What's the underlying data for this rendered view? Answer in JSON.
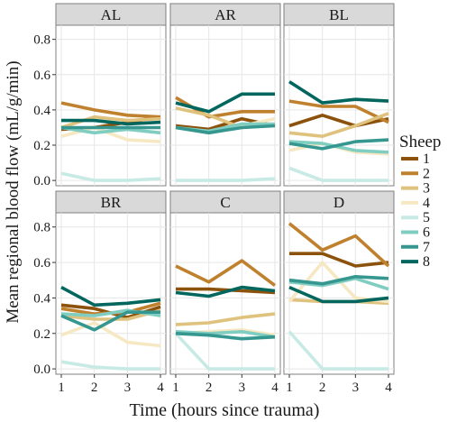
{
  "chart_data": {
    "type": "line",
    "facet_layout": "2 rows x 3 columns",
    "xlabel": "Time (hours since trauma)",
    "ylabel": "Mean regional blood flow (mL/g/min)",
    "x": [
      1,
      2,
      3,
      4
    ],
    "x_ticks": [
      "1",
      "2",
      "3",
      "4"
    ],
    "xlim": [
      1,
      4
    ],
    "ylim": [
      -0.03,
      0.88
    ],
    "y_ticks": [
      "0.0",
      "0.2",
      "0.4",
      "0.6",
      "0.8"
    ],
    "y_tick_values": [
      0,
      0.2,
      0.4,
      0.6,
      0.8
    ],
    "grid": true,
    "legend": {
      "title": "Sheep",
      "placement": "right",
      "entries": [
        {
          "label": "1",
          "color": "#8c510a"
        },
        {
          "label": "2",
          "color": "#bf812d"
        },
        {
          "label": "3",
          "color": "#dfc27d"
        },
        {
          "label": "4",
          "color": "#f6e8c3"
        },
        {
          "label": "5",
          "color": "#c7eae5"
        },
        {
          "label": "6",
          "color": "#80cdc1"
        },
        {
          "label": "7",
          "color": "#35978f"
        },
        {
          "label": "8",
          "color": "#01665e"
        }
      ]
    },
    "panels": [
      {
        "label": "AL",
        "series": [
          {
            "name": "1",
            "values": [
              0.29,
              0.3,
              0.33,
              0.36
            ]
          },
          {
            "name": "2",
            "values": [
              0.44,
              0.4,
              0.37,
              0.36
            ]
          },
          {
            "name": "3",
            "values": [
              0.3,
              0.36,
              0.34,
              0.35
            ]
          },
          {
            "name": "4",
            "values": [
              0.25,
              0.3,
              0.23,
              0.22
            ]
          },
          {
            "name": "5",
            "values": [
              0.04,
              0.0,
              0.0,
              0.01
            ]
          },
          {
            "name": "6",
            "values": [
              0.3,
              0.27,
              0.29,
              0.27
            ]
          },
          {
            "name": "7",
            "values": [
              0.3,
              0.3,
              0.3,
              0.3
            ]
          },
          {
            "name": "8",
            "values": [
              0.34,
              0.34,
              0.32,
              0.33
            ]
          }
        ]
      },
      {
        "label": "AR",
        "series": [
          {
            "name": "1",
            "values": [
              0.31,
              0.29,
              0.35,
              0.31
            ]
          },
          {
            "name": "2",
            "values": [
              0.47,
              0.36,
              0.39,
              0.39
            ]
          },
          {
            "name": "3",
            "values": [
              0.41,
              0.37,
              0.3,
              0.32
            ]
          },
          {
            "name": "4",
            "values": [
              0.3,
              0.27,
              0.31,
              0.35
            ]
          },
          {
            "name": "5",
            "values": [
              0.0,
              0.0,
              0.0,
              0.01
            ]
          },
          {
            "name": "6",
            "values": [
              0.3,
              0.28,
              0.32,
              0.32
            ]
          },
          {
            "name": "7",
            "values": [
              0.3,
              0.27,
              0.3,
              0.31
            ]
          },
          {
            "name": "8",
            "values": [
              0.44,
              0.39,
              0.49,
              0.49
            ]
          }
        ]
      },
      {
        "label": "BL",
        "series": [
          {
            "name": "1",
            "values": [
              0.31,
              0.37,
              0.31,
              0.35
            ]
          },
          {
            "name": "2",
            "values": [
              0.45,
              0.42,
              0.42,
              0.33
            ]
          },
          {
            "name": "3",
            "values": [
              0.27,
              0.25,
              0.31,
              0.38
            ]
          },
          {
            "name": "4",
            "values": [
              0.17,
              0.21,
              0.16,
              0.15
            ]
          },
          {
            "name": "5",
            "values": [
              0.07,
              0.0,
              0.0,
              0.0
            ]
          },
          {
            "name": "6",
            "values": [
              0.22,
              0.21,
              0.17,
              0.16
            ]
          },
          {
            "name": "7",
            "values": [
              0.21,
              0.18,
              0.22,
              0.23
            ]
          },
          {
            "name": "8",
            "values": [
              0.56,
              0.44,
              0.46,
              0.45
            ]
          }
        ]
      },
      {
        "label": "BR",
        "series": [
          {
            "name": "1",
            "values": [
              0.36,
              0.34,
              0.29,
              0.35
            ]
          },
          {
            "name": "2",
            "values": [
              0.34,
              0.31,
              0.32,
              0.37
            ]
          },
          {
            "name": "3",
            "values": [
              0.3,
              0.28,
              0.28,
              0.33
            ]
          },
          {
            "name": "4",
            "values": [
              0.19,
              0.26,
              0.15,
              0.13
            ]
          },
          {
            "name": "5",
            "values": [
              0.04,
              0.01,
              0.0,
              0.0
            ]
          },
          {
            "name": "6",
            "values": [
              0.31,
              0.3,
              0.33,
              0.3
            ]
          },
          {
            "name": "7",
            "values": [
              0.3,
              0.22,
              0.32,
              0.32
            ]
          },
          {
            "name": "8",
            "values": [
              0.46,
              0.36,
              0.37,
              0.39
            ]
          }
        ]
      },
      {
        "label": "C",
        "series": [
          {
            "name": "1",
            "values": [
              0.45,
              0.45,
              0.44,
              0.43
            ]
          },
          {
            "name": "2",
            "values": [
              0.58,
              0.49,
              0.61,
              0.47
            ]
          },
          {
            "name": "3",
            "values": [
              0.25,
              0.26,
              0.29,
              0.31
            ]
          },
          {
            "name": "4",
            "values": [
              0.2,
              0.21,
              0.22,
              0.19
            ]
          },
          {
            "name": "5",
            "values": [
              0.2,
              0.0,
              0.0,
              0.0
            ]
          },
          {
            "name": "6",
            "values": [
              0.21,
              0.2,
              0.21,
              0.18
            ]
          },
          {
            "name": "7",
            "values": [
              0.2,
              0.19,
              0.17,
              0.18
            ]
          },
          {
            "name": "8",
            "values": [
              0.43,
              0.41,
              0.46,
              0.44
            ]
          }
        ]
      },
      {
        "label": "D",
        "series": [
          {
            "name": "1",
            "values": [
              0.65,
              0.65,
              0.58,
              0.6
            ]
          },
          {
            "name": "2",
            "values": [
              0.82,
              0.67,
              0.75,
              0.58
            ]
          },
          {
            "name": "3",
            "values": [
              0.39,
              0.38,
              0.38,
              0.37
            ]
          },
          {
            "name": "4",
            "values": [
              0.38,
              0.6,
              0.4,
              0.38
            ]
          },
          {
            "name": "5",
            "values": [
              0.21,
              0.0,
              0.0,
              0.0
            ]
          },
          {
            "name": "6",
            "values": [
              0.49,
              0.47,
              0.51,
              0.45
            ]
          },
          {
            "name": "7",
            "values": [
              0.5,
              0.48,
              0.52,
              0.51
            ]
          },
          {
            "name": "8",
            "values": [
              0.46,
              0.38,
              0.38,
              0.4
            ]
          }
        ]
      }
    ]
  }
}
